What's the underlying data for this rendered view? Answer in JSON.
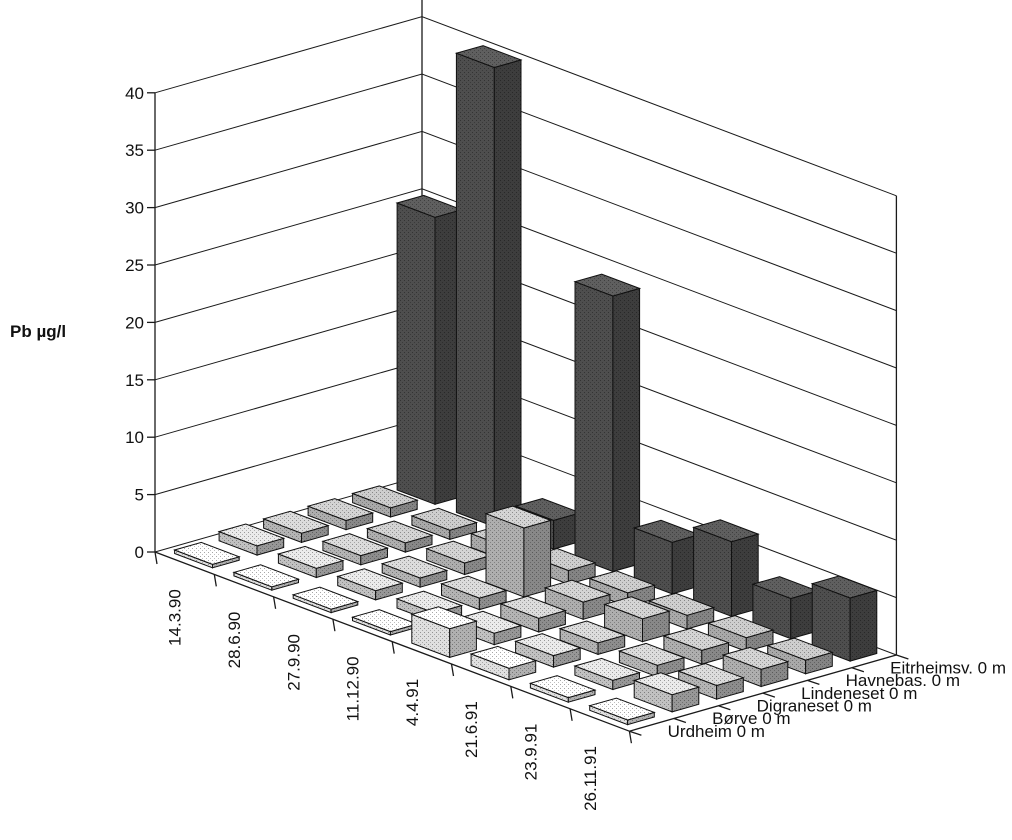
{
  "chart_data": {
    "type": "bar",
    "subtype": "3d-grouped-bar",
    "ylabel": "Pb µg/l",
    "ylim": [
      0,
      40
    ],
    "y_ticks": [
      "0",
      "5",
      "10",
      "15",
      "20",
      "25",
      "30",
      "35",
      "40"
    ],
    "grid": true,
    "categories": [
      "14.3.90",
      "28.6.90",
      "27.9.90",
      "11.12.90",
      "4.4.91",
      "21.6.91",
      "23.9.91",
      "26.11.91"
    ],
    "series": [
      {
        "name": "Urdheim 0 m",
        "color": "#f4f4f4",
        "values": [
          0.3,
          0.3,
          0.3,
          0.3,
          2.5,
          1.0,
          0.4,
          0.4
        ]
      },
      {
        "name": "Børve 0 m",
        "color": "#d2d2d2",
        "values": [
          0.8,
          0.8,
          0.8,
          0.8,
          1.0,
          1.0,
          0.8,
          1.5
        ]
      },
      {
        "name": "Digraneset 0 m",
        "color": "#c4c4c4",
        "values": [
          0.8,
          0.8,
          0.8,
          1.0,
          1.2,
          1.0,
          1.0,
          1.2
        ]
      },
      {
        "name": "Lindeneset 0 m",
        "color": "#bdbdbd",
        "values": [
          0.8,
          0.8,
          1.0,
          6.0,
          1.5,
          2.0,
          1.2,
          1.5
        ]
      },
      {
        "name": "Havnebas. 0 m",
        "color": "#b8b8b8",
        "values": [
          0.8,
          0.8,
          1.2,
          1.2,
          1.2,
          1.2,
          1.2,
          1.2
        ]
      },
      {
        "name": "Eitrheimsv. 0 m",
        "color": "#555555",
        "values": [
          25,
          40,
          2.5,
          24,
          4.5,
          6.5,
          3.5,
          5.5
        ]
      }
    ]
  }
}
